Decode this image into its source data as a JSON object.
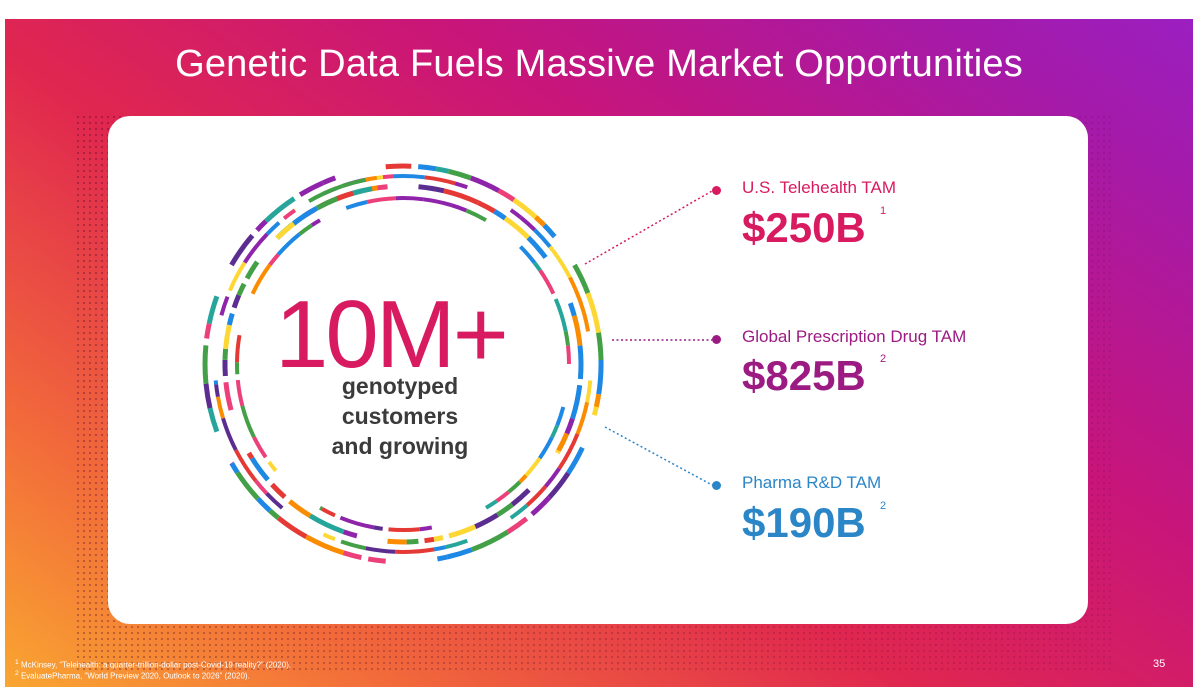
{
  "slide": {
    "title": "Genetic Data Fuels Massive Market Opportunities",
    "headline_number": "10M+",
    "headline_sub": [
      "genotyped",
      "customers",
      "and growing"
    ],
    "markets": [
      {
        "label": "U.S. Telehealth TAM",
        "value": "$250B",
        "ref": "1",
        "color": "#d81b60"
      },
      {
        "label": "Global Prescription Drug TAM",
        "value": "$825B",
        "ref": "2",
        "color": "#9c1b82"
      },
      {
        "label": "Pharma R&D TAM",
        "value": "$190B",
        "ref": "2",
        "color": "#2b86c8"
      }
    ],
    "footnotes": [
      {
        "mark": "1",
        "text": "McKinsey, “Telehealth: a quarter-trillion-dollar post-Covid-19 reality?” (2020)."
      },
      {
        "mark": "2",
        "text": "EvaluatePharma, “World Preview 2020, Outlook to 2026” (2020)."
      }
    ],
    "page_number": "35"
  },
  "colors": {
    "gradient": [
      "#f9a631",
      "#e0274f",
      "#c8157a",
      "#9b1fc0"
    ],
    "dna_segments": [
      "#8e24aa",
      "#5c2d91",
      "#43a047",
      "#1e88e5",
      "#fdd835",
      "#e53935",
      "#ec407a",
      "#26a69a",
      "#fb8c00"
    ]
  },
  "icons": [
    "dna-ring-graphic",
    "bullet-dot"
  ]
}
